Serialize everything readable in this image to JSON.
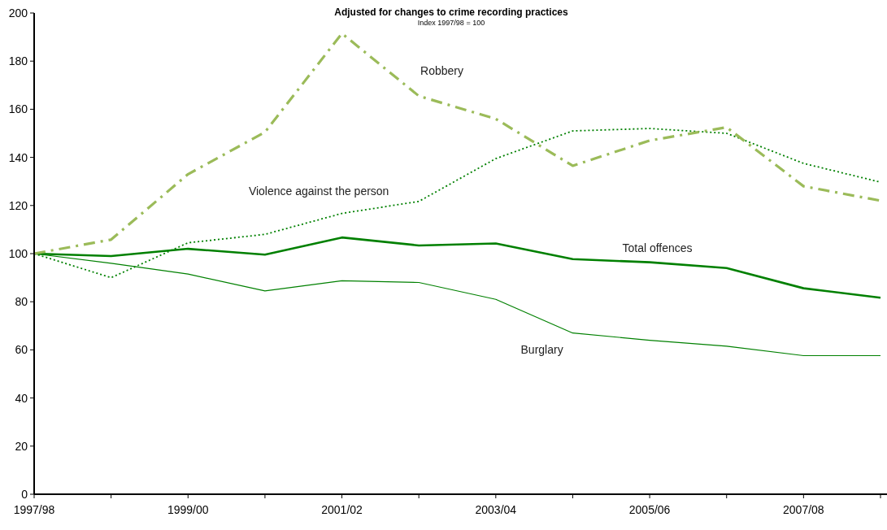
{
  "chart_data": {
    "type": "line",
    "subtitle": "Adjusted for changes to crime recording practices",
    "annotations": [
      "Index 1997/98 = 100"
    ],
    "categories": [
      "1997/98",
      null,
      "1999/00",
      null,
      "2001/02",
      null,
      "2003/04",
      null,
      "2005/06",
      null,
      "2007/08",
      null
    ],
    "ylim": [
      0,
      200
    ],
    "yticks": [
      0,
      20,
      40,
      60,
      80,
      100,
      120,
      140,
      160,
      180,
      200
    ],
    "grid": false,
    "marker": "none",
    "series": [
      {
        "name": "Total offences",
        "color": "#008000",
        "line_style": "solid",
        "values": [
          100,
          99,
          102,
          99.6,
          106.7,
          103.4,
          104.2,
          97.7,
          96.4,
          94,
          85.6,
          81.7
        ]
      },
      {
        "name": "Burglary",
        "color": "#008000",
        "line_style": "solid",
        "values": [
          100,
          96,
          91.5,
          84.5,
          88.7,
          88,
          81,
          67,
          64,
          61.5,
          57.6,
          57.6
        ]
      },
      {
        "name": "Violence against the person",
        "color": "#008000",
        "line_style": "dotted",
        "values": [
          100,
          90,
          104.5,
          108,
          116.7,
          121.7,
          139.5,
          151,
          152,
          150,
          137.5,
          129.7
        ]
      },
      {
        "name": "Robbery",
        "color": "#9bbb59",
        "line_style": "dashed",
        "values": [
          100,
          105.8,
          133,
          150.5,
          191.5,
          165.5,
          156,
          136.5,
          147,
          152.5,
          128,
          122
        ]
      }
    ]
  }
}
